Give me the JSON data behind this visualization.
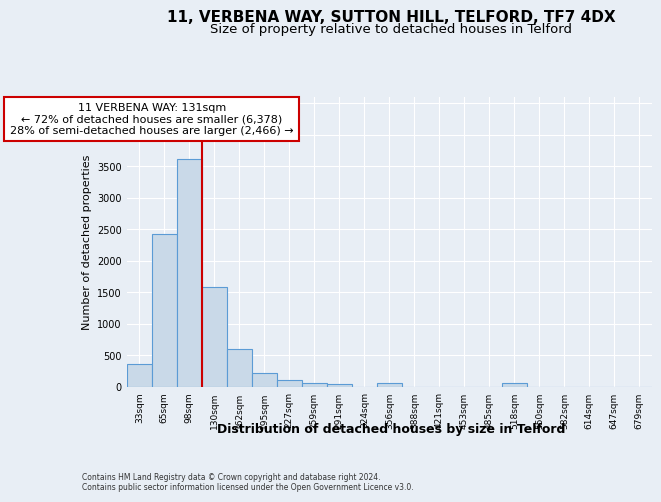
{
  "title_line1": "11, VERBENA WAY, SUTTON HILL, TELFORD, TF7 4DX",
  "title_line2": "Size of property relative to detached houses in Telford",
  "xlabel": "Distribution of detached houses by size in Telford",
  "ylabel": "Number of detached properties",
  "footer": "Contains HM Land Registry data © Crown copyright and database right 2024.\nContains public sector information licensed under the Open Government Licence v3.0.",
  "bin_labels": [
    "33sqm",
    "65sqm",
    "98sqm",
    "130sqm",
    "162sqm",
    "195sqm",
    "227sqm",
    "259sqm",
    "291sqm",
    "324sqm",
    "356sqm",
    "388sqm",
    "421sqm",
    "453sqm",
    "485sqm",
    "518sqm",
    "550sqm",
    "582sqm",
    "614sqm",
    "647sqm",
    "679sqm"
  ],
  "bar_values": [
    370,
    2420,
    3620,
    1580,
    600,
    230,
    110,
    70,
    40,
    0,
    60,
    0,
    0,
    0,
    0,
    60,
    0,
    0,
    0,
    0,
    0
  ],
  "bar_color": "#c9d9e8",
  "bar_edge_color": "#5b9bd5",
  "annotation_line1": "11 VERBENA WAY: 131sqm",
  "annotation_line2": "← 72% of detached houses are smaller (6,378)",
  "annotation_line3": "28% of semi-detached houses are larger (2,466) →",
  "vline_x_index": 3,
  "vline_color": "#cc0000",
  "annotation_box_facecolor": "#ffffff",
  "annotation_box_edgecolor": "#cc0000",
  "ylim": [
    0,
    4600
  ],
  "yticks": [
    0,
    500,
    1000,
    1500,
    2000,
    2500,
    3000,
    3500,
    4000,
    4500
  ],
  "background_color": "#e8eef5",
  "grid_color": "#ffffff",
  "title_fontsize": 11,
  "subtitle_fontsize": 9.5,
  "ylabel_fontsize": 8,
  "xlabel_fontsize": 9,
  "tick_fontsize": 6.5,
  "annotation_fontsize": 8
}
